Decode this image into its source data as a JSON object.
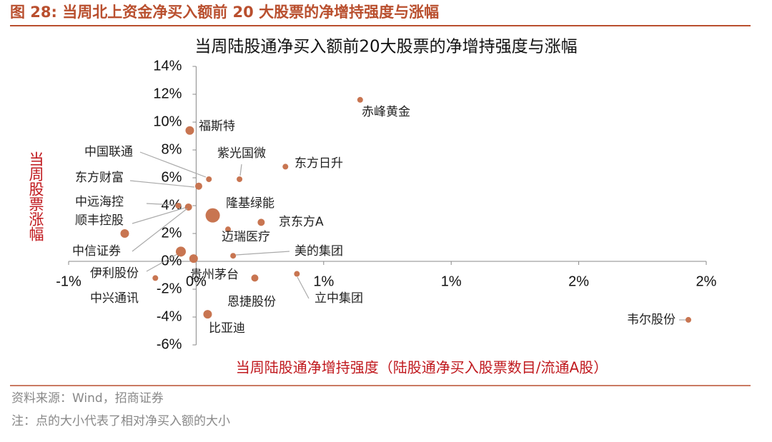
{
  "header": {
    "title": "图 28:  当周北上资金净买入额前 20 大股票的净增持强度与涨幅"
  },
  "chart_data": {
    "type": "scatter",
    "title": "当周陆股通净买入额前20大股票的净增持强度与涨幅",
    "x_label": "当周陆股通净增持强度（陆股通净买入股票数目/流通A股）",
    "y_label": "当周股票涨幅",
    "color": "#c87551",
    "labels": [
      "赤峰黄金",
      "福斯特",
      "中国联通",
      "紫光国微",
      "东方日升",
      "东方财富",
      "中远海控",
      "顺丰控股",
      "隆基绿能",
      "京东方A",
      "迈瑞医疗",
      "中信证券",
      "美的集团",
      "伊利股份",
      "贵州茅台",
      "中兴通讯",
      "恩捷股份",
      "立中集团",
      "比亚迪",
      "韦尔股份"
    ],
    "x": [
      0.643,
      -0.025,
      0.05,
      0.17,
      0.35,
      0.01,
      -0.07,
      -0.03,
      0.065,
      0.255,
      0.125,
      -0.28,
      0.145,
      -0.06,
      -0.01,
      -0.16,
      0.23,
      0.395,
      0.045,
      1.93
    ],
    "y": [
      11.6,
      9.4,
      5.9,
      5.9,
      6.8,
      5.4,
      4.0,
      3.9,
      3.3,
      2.8,
      2.3,
      2.0,
      0.4,
      0.7,
      0.2,
      -1.2,
      -1.2,
      -0.9,
      -3.8,
      -4.2
    ],
    "sizes": [
      16,
      36,
      16,
      16,
      16,
      25,
      16,
      25,
      100,
      25,
      16,
      36,
      16,
      49,
      36,
      16,
      25,
      16,
      36,
      16
    ],
    "xlim": [
      -0.5,
      2.0
    ],
    "xticks": [
      {
        "value": -0.5,
        "label": "-1%"
      },
      {
        "value": 0,
        "label": "0%"
      },
      {
        "value": 0.5,
        "label": "1%"
      },
      {
        "value": 1.0,
        "label": "1%"
      },
      {
        "value": 1.5,
        "label": "2%"
      },
      {
        "value": 2.0,
        "label": "2%"
      }
    ],
    "ylim": [
      -6,
      14
    ],
    "yticks": [
      {
        "value": -6,
        "label": "-6%"
      },
      {
        "value": -4,
        "label": "-4%"
      },
      {
        "value": -2,
        "label": "-2%"
      },
      {
        "value": 0,
        "label": "0%"
      },
      {
        "value": 2,
        "label": "2%"
      },
      {
        "value": 4,
        "label": "4%"
      },
      {
        "value": 6,
        "label": "6%"
      },
      {
        "value": 8,
        "label": "8%"
      },
      {
        "value": 10,
        "label": "10%"
      },
      {
        "value": 12,
        "label": "12%"
      },
      {
        "value": 14,
        "label": "14%"
      }
    ]
  },
  "footer": {
    "source": "资料来源：Wind，招商证券",
    "note": "注：点的大小代表了相对净买入额的大小"
  }
}
